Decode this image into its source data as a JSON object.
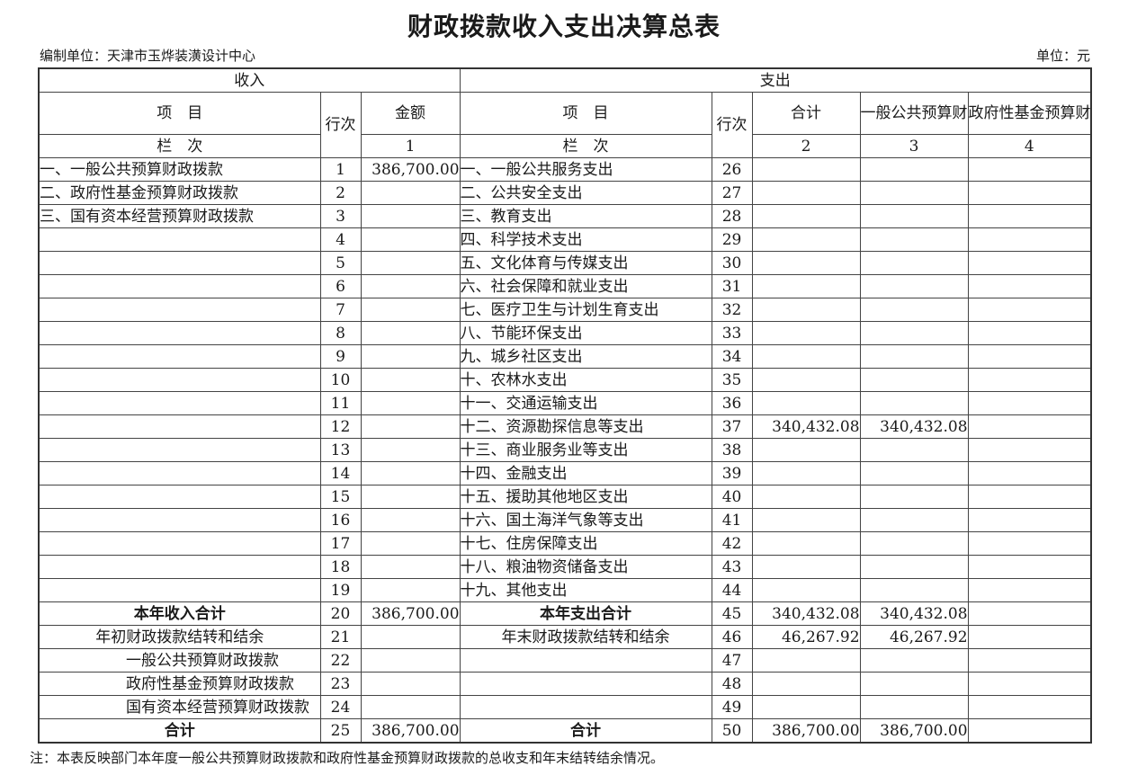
{
  "page": {
    "title": "财政拨款收入支出决算总表",
    "unit_label": "编制单位：天津市玉烨装潢设计中心",
    "currency_label": "单位：元",
    "note": "注：本表反映部门本年度一般公共预算财政拨款和政府性基金预算财政拨款的总收支和年末结转结余情况。"
  },
  "table": {
    "sections": {
      "income": "收入",
      "expense": "支出"
    },
    "headers": {
      "item": "项　目",
      "row_no": "行次",
      "amount": "金额",
      "total": "合计",
      "general_budget": "一般公共预算财政拨款",
      "gov_fund": "政府性基金预算财政拨款",
      "column_row_label": "栏　次",
      "column_numbers": {
        "amount": "1",
        "total": "2",
        "general": "3",
        "fund": "4"
      }
    },
    "income_rows": [
      {
        "item": "一、一般公共预算财政拨款",
        "no": "1",
        "amount": "386,700.00",
        "style": "left"
      },
      {
        "item": "二、政府性基金预算财政拨款",
        "no": "2",
        "amount": "",
        "style": "left"
      },
      {
        "item": "三、国有资本经营预算财政拨款",
        "no": "3",
        "amount": "",
        "style": "left"
      },
      {
        "item": "",
        "no": "4",
        "amount": "",
        "style": "left"
      },
      {
        "item": "",
        "no": "5",
        "amount": "",
        "style": "left"
      },
      {
        "item": "",
        "no": "6",
        "amount": "",
        "style": "left"
      },
      {
        "item": "",
        "no": "7",
        "amount": "",
        "style": "left"
      },
      {
        "item": "",
        "no": "8",
        "amount": "",
        "style": "left"
      },
      {
        "item": "",
        "no": "9",
        "amount": "",
        "style": "left"
      },
      {
        "item": "",
        "no": "10",
        "amount": "",
        "style": "left"
      },
      {
        "item": "",
        "no": "11",
        "amount": "",
        "style": "left"
      },
      {
        "item": "",
        "no": "12",
        "amount": "",
        "style": "left"
      },
      {
        "item": "",
        "no": "13",
        "amount": "",
        "style": "left"
      },
      {
        "item": "",
        "no": "14",
        "amount": "",
        "style": "left"
      },
      {
        "item": "",
        "no": "15",
        "amount": "",
        "style": "left"
      },
      {
        "item": "",
        "no": "16",
        "amount": "",
        "style": "left"
      },
      {
        "item": "",
        "no": "17",
        "amount": "",
        "style": "left"
      },
      {
        "item": "",
        "no": "18",
        "amount": "",
        "style": "left"
      },
      {
        "item": "",
        "no": "19",
        "amount": "",
        "style": "left"
      },
      {
        "item": "本年收入合计",
        "no": "20",
        "amount": "386,700.00",
        "style": "bold-center"
      },
      {
        "item": "年初财政拨款结转和结余",
        "no": "21",
        "amount": "",
        "style": "center"
      },
      {
        "item": "一般公共预算财政拨款",
        "no": "22",
        "amount": "",
        "style": "indent"
      },
      {
        "item": "政府性基金预算财政拨款",
        "no": "23",
        "amount": "",
        "style": "indent"
      },
      {
        "item": "国有资本经营预算财政拨款",
        "no": "24",
        "amount": "",
        "style": "indent"
      },
      {
        "item": "合计",
        "no": "25",
        "amount": "386,700.00",
        "style": "bold-center"
      }
    ],
    "expense_rows": [
      {
        "item": "一、一般公共服务支出",
        "no": "26",
        "total": "",
        "general": "",
        "fund": "",
        "style": "left"
      },
      {
        "item": "二、公共安全支出",
        "no": "27",
        "total": "",
        "general": "",
        "fund": "",
        "style": "left"
      },
      {
        "item": "三、教育支出",
        "no": "28",
        "total": "",
        "general": "",
        "fund": "",
        "style": "left"
      },
      {
        "item": "四、科学技术支出",
        "no": "29",
        "total": "",
        "general": "",
        "fund": "",
        "style": "left"
      },
      {
        "item": "五、文化体育与传媒支出",
        "no": "30",
        "total": "",
        "general": "",
        "fund": "",
        "style": "left"
      },
      {
        "item": "六、社会保障和就业支出",
        "no": "31",
        "total": "",
        "general": "",
        "fund": "",
        "style": "left"
      },
      {
        "item": "七、医疗卫生与计划生育支出",
        "no": "32",
        "total": "",
        "general": "",
        "fund": "",
        "style": "left"
      },
      {
        "item": "八、节能环保支出",
        "no": "33",
        "total": "",
        "general": "",
        "fund": "",
        "style": "left"
      },
      {
        "item": "九、城乡社区支出",
        "no": "34",
        "total": "",
        "general": "",
        "fund": "",
        "style": "left"
      },
      {
        "item": "十、农林水支出",
        "no": "35",
        "total": "",
        "general": "",
        "fund": "",
        "style": "left"
      },
      {
        "item": "十一、交通运输支出",
        "no": "36",
        "total": "",
        "general": "",
        "fund": "",
        "style": "left"
      },
      {
        "item": "十二、资源勘探信息等支出",
        "no": "37",
        "total": "340,432.08",
        "general": "340,432.08",
        "fund": "",
        "style": "left"
      },
      {
        "item": "十三、商业服务业等支出",
        "no": "38",
        "total": "",
        "general": "",
        "fund": "",
        "style": "left"
      },
      {
        "item": "十四、金融支出",
        "no": "39",
        "total": "",
        "general": "",
        "fund": "",
        "style": "left"
      },
      {
        "item": "十五、援助其他地区支出",
        "no": "40",
        "total": "",
        "general": "",
        "fund": "",
        "style": "left"
      },
      {
        "item": "十六、国土海洋气象等支出",
        "no": "41",
        "total": "",
        "general": "",
        "fund": "",
        "style": "left"
      },
      {
        "item": "十七、住房保障支出",
        "no": "42",
        "total": "",
        "general": "",
        "fund": "",
        "style": "left"
      },
      {
        "item": "十八、粮油物资储备支出",
        "no": "43",
        "total": "",
        "general": "",
        "fund": "",
        "style": "left"
      },
      {
        "item": "十九、其他支出",
        "no": "44",
        "total": "",
        "general": "",
        "fund": "",
        "style": "left"
      },
      {
        "item": "本年支出合计",
        "no": "45",
        "total": "340,432.08",
        "general": "340,432.08",
        "fund": "",
        "style": "bold-center"
      },
      {
        "item": "年末财政拨款结转和结余",
        "no": "46",
        "total": "46,267.92",
        "general": "46,267.92",
        "fund": "",
        "style": "center"
      },
      {
        "item": "",
        "no": "47",
        "total": "",
        "general": "",
        "fund": "",
        "style": "left"
      },
      {
        "item": "",
        "no": "48",
        "total": "",
        "general": "",
        "fund": "",
        "style": "left"
      },
      {
        "item": "",
        "no": "49",
        "total": "",
        "general": "",
        "fund": "",
        "style": "left"
      },
      {
        "item": "合计",
        "no": "50",
        "total": "386,700.00",
        "general": "386,700.00",
        "fund": "",
        "style": "bold-center"
      }
    ]
  }
}
